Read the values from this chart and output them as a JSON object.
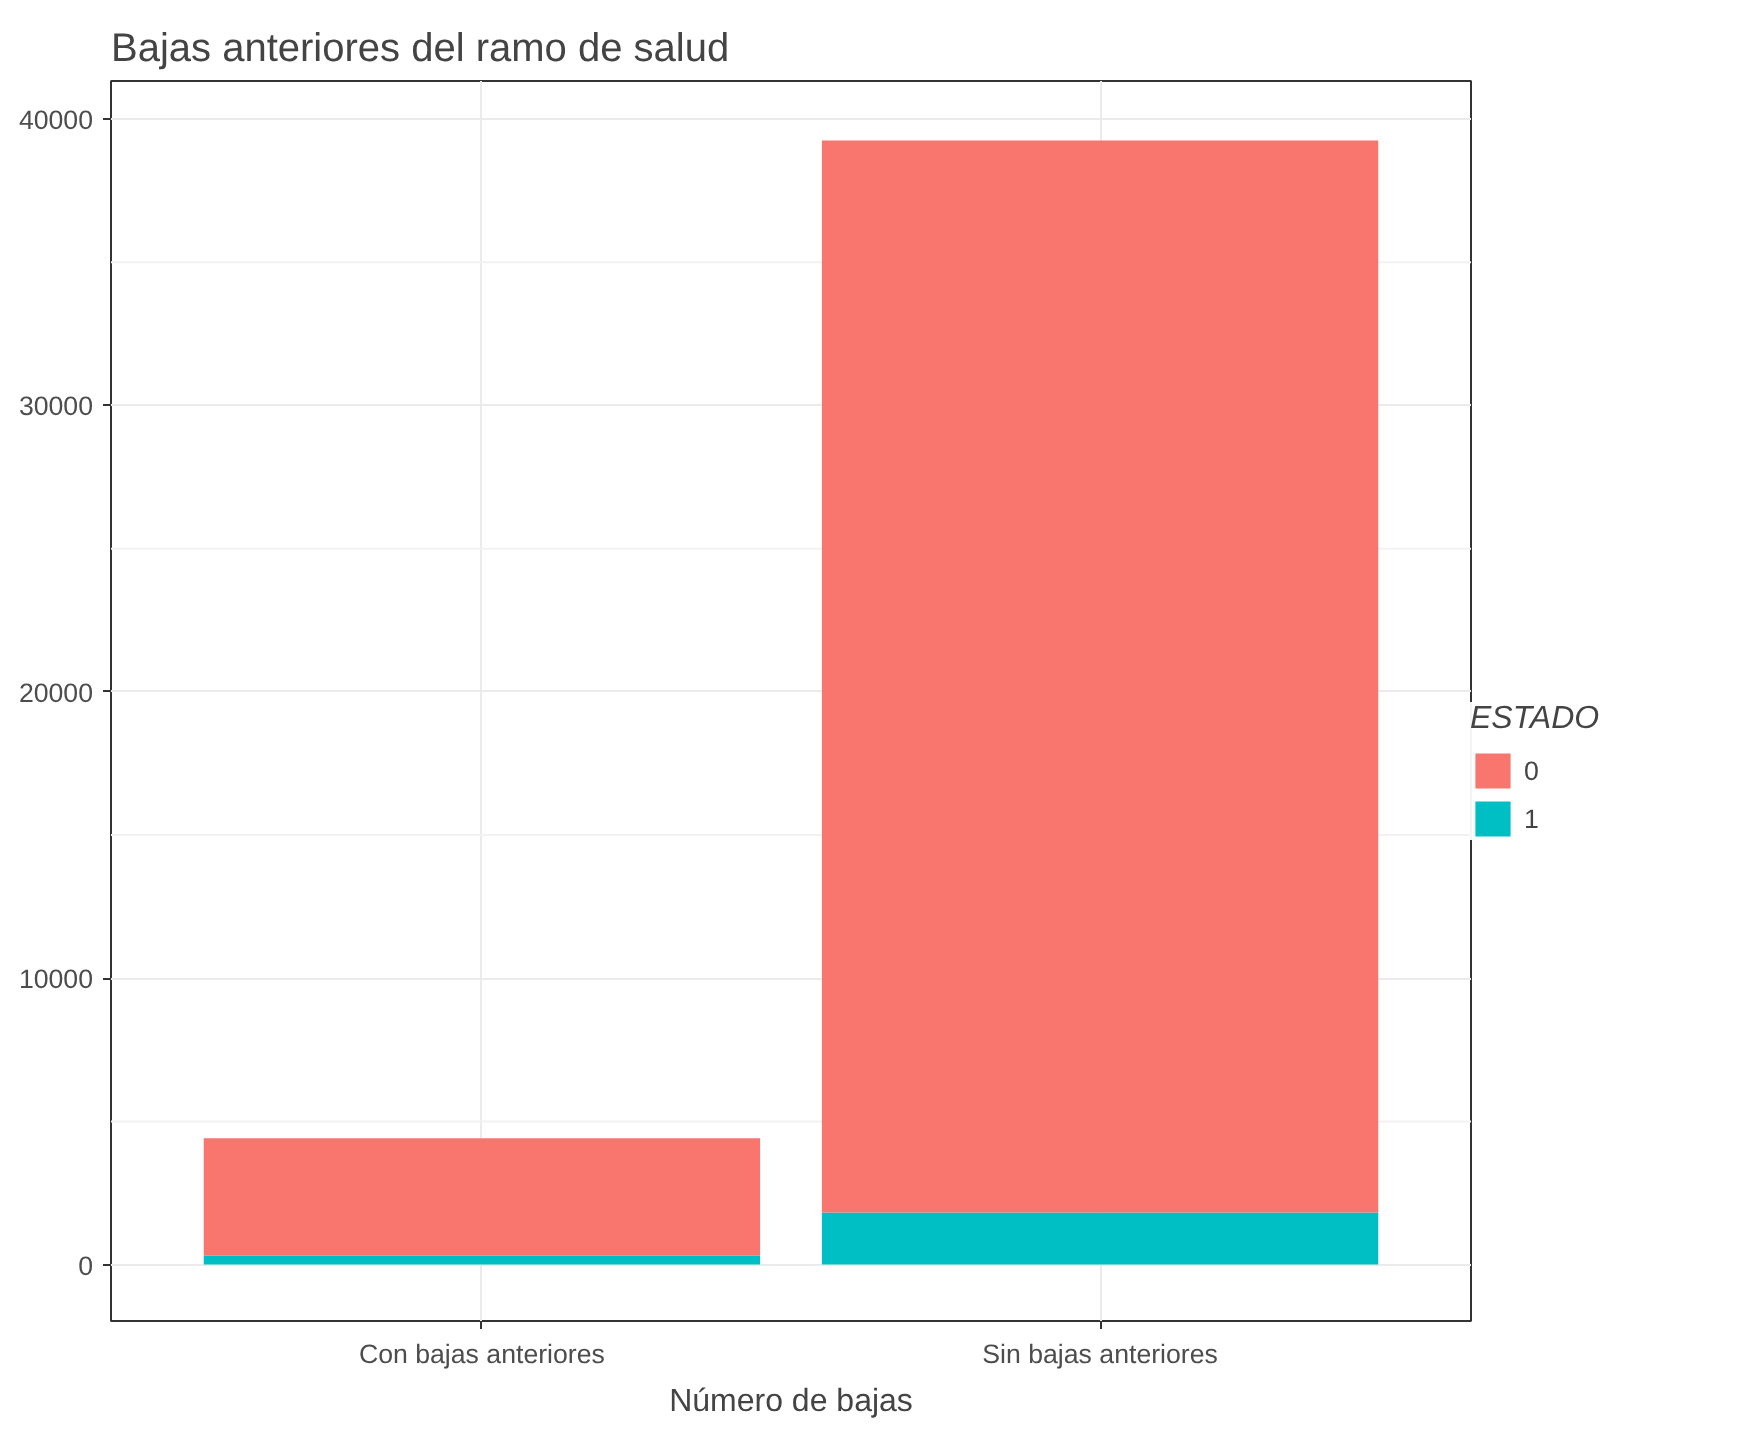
{
  "chart_data": {
    "type": "bar",
    "title": "Bajas anteriores del ramo de salud",
    "xlabel": "Número de bajas",
    "legend_title": "ESTADO",
    "categories": [
      "Con bajas anteriores",
      "Sin bajas anteriores"
    ],
    "stacked": true,
    "series": [
      {
        "name": "1",
        "color": "#00bfc4",
        "values": [
          310,
          1820
        ]
      },
      {
        "name": "0",
        "color": "#f8766d",
        "values": [
          4100,
          37430
        ]
      }
    ],
    "ylim": [
      -1970,
      41330
    ],
    "yticks": [
      0,
      10000,
      20000,
      30000,
      40000
    ],
    "grid": true,
    "legend": "right"
  }
}
